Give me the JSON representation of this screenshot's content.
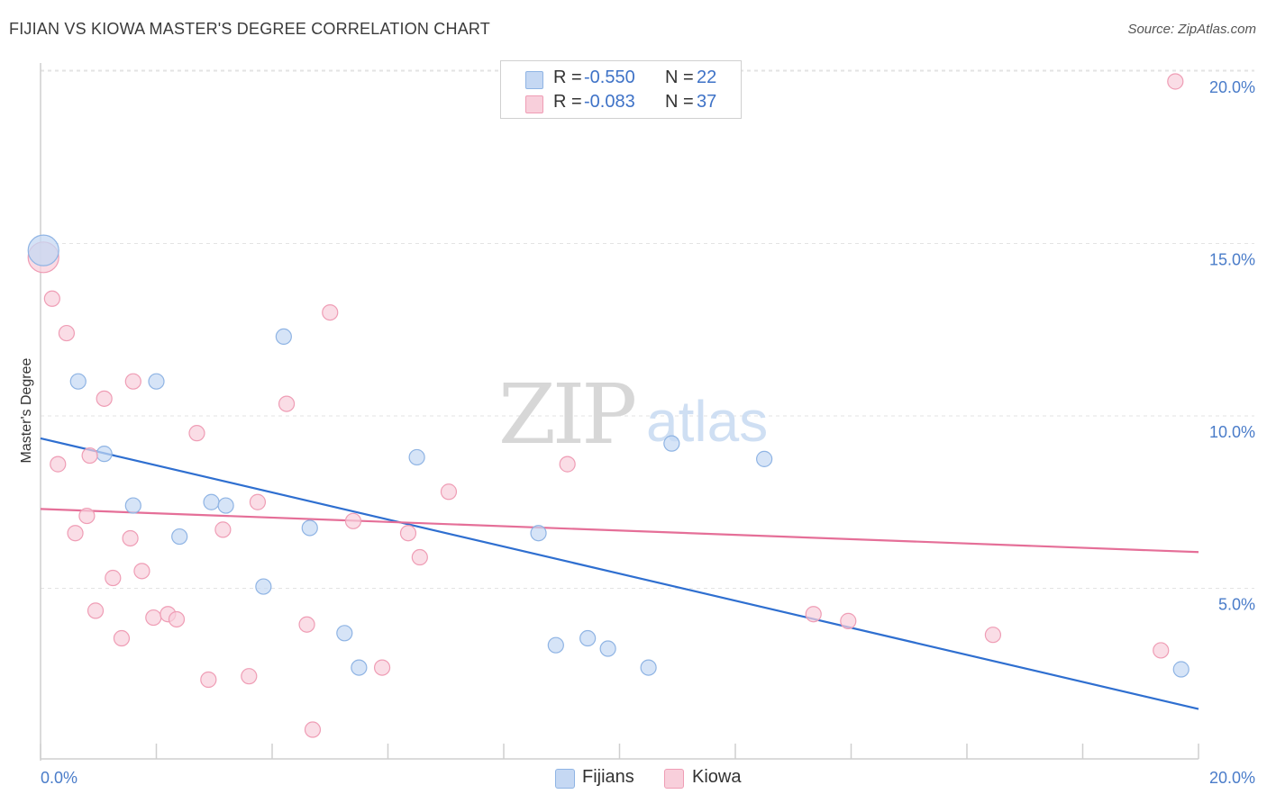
{
  "header": {
    "title": "FIJIAN VS KIOWA MASTER'S DEGREE CORRELATION CHART",
    "source": "Source: ZipAtlas.com"
  },
  "watermark": {
    "zip": "ZIP",
    "atlas": "atlas"
  },
  "legend": {
    "rows": [
      {
        "r_label": "R =",
        "r_value": "-0.550",
        "n_label": "N =",
        "n_value": "22"
      },
      {
        "r_label": "R =",
        "r_value": "-0.083",
        "n_label": "N =",
        "n_value": "37"
      }
    ]
  },
  "bottom_legend": {
    "fijians": "Fijians",
    "kiowa": "Kiowa"
  },
  "colors": {
    "fijians_fill": "#c5d8f3",
    "fijians_stroke": "#8fb4e4",
    "fijians_line": "#2f6fd0",
    "kiowa_fill": "#f8cfdb",
    "kiowa_stroke": "#ef9db5",
    "kiowa_line": "#e56f98",
    "grid": "#e3e3e3",
    "tick_text": "#4a7cc9"
  },
  "chart_data": {
    "type": "scatter",
    "title": "FIJIAN VS KIOWA MASTER'S DEGREE CORRELATION CHART",
    "xlabel": "",
    "ylabel": "Master's Degree",
    "xlim": [
      0,
      20
    ],
    "ylim": [
      0,
      20
    ],
    "x_tick_labels": [
      "0.0%",
      "20.0%"
    ],
    "y_ticks": [
      5,
      10,
      15,
      20
    ],
    "y_tick_labels": [
      "5.0%",
      "10.0%",
      "15.0%",
      "20.0%"
    ],
    "grid": true,
    "legend_position": "top-center",
    "series": [
      {
        "name": "Fijians",
        "r": -0.55,
        "n": 22,
        "points": [
          {
            "x": 0.05,
            "y": 14.8,
            "big": true
          },
          {
            "x": 0.65,
            "y": 11.0
          },
          {
            "x": 2.0,
            "y": 11.0
          },
          {
            "x": 4.2,
            "y": 12.3
          },
          {
            "x": 1.1,
            "y": 8.9
          },
          {
            "x": 1.6,
            "y": 7.4
          },
          {
            "x": 2.95,
            "y": 7.5
          },
          {
            "x": 3.2,
            "y": 7.4
          },
          {
            "x": 2.4,
            "y": 6.5
          },
          {
            "x": 4.65,
            "y": 6.75
          },
          {
            "x": 3.85,
            "y": 5.05
          },
          {
            "x": 5.25,
            "y": 3.7
          },
          {
            "x": 5.5,
            "y": 2.7
          },
          {
            "x": 6.5,
            "y": 8.8
          },
          {
            "x": 8.6,
            "y": 6.6
          },
          {
            "x": 8.9,
            "y": 3.35
          },
          {
            "x": 9.45,
            "y": 3.55
          },
          {
            "x": 9.8,
            "y": 3.25
          },
          {
            "x": 10.5,
            "y": 2.7
          },
          {
            "x": 10.9,
            "y": 9.2
          },
          {
            "x": 12.5,
            "y": 8.75
          },
          {
            "x": 19.7,
            "y": 2.65
          }
        ],
        "trend": {
          "x1": 0,
          "y1": 9.35,
          "x2": 20,
          "y2": 1.5
        }
      },
      {
        "name": "Kiowa",
        "r": -0.083,
        "n": 37,
        "points": [
          {
            "x": 0.05,
            "y": 14.6,
            "big": true
          },
          {
            "x": 19.6,
            "y": 19.7
          },
          {
            "x": 0.2,
            "y": 13.4
          },
          {
            "x": 0.45,
            "y": 12.4
          },
          {
            "x": 5.0,
            "y": 13.0
          },
          {
            "x": 1.1,
            "y": 10.5
          },
          {
            "x": 1.6,
            "y": 11.0
          },
          {
            "x": 4.25,
            "y": 10.35
          },
          {
            "x": 2.7,
            "y": 9.5
          },
          {
            "x": 0.3,
            "y": 8.6
          },
          {
            "x": 0.85,
            "y": 8.85
          },
          {
            "x": 0.8,
            "y": 7.1
          },
          {
            "x": 0.6,
            "y": 6.6
          },
          {
            "x": 1.55,
            "y": 6.45
          },
          {
            "x": 3.75,
            "y": 7.5
          },
          {
            "x": 3.15,
            "y": 6.7
          },
          {
            "x": 5.4,
            "y": 6.95
          },
          {
            "x": 6.35,
            "y": 6.6
          },
          {
            "x": 7.05,
            "y": 7.8
          },
          {
            "x": 6.55,
            "y": 5.9
          },
          {
            "x": 9.1,
            "y": 8.6
          },
          {
            "x": 1.25,
            "y": 5.3
          },
          {
            "x": 1.75,
            "y": 5.5
          },
          {
            "x": 0.95,
            "y": 4.35
          },
          {
            "x": 1.95,
            "y": 4.15
          },
          {
            "x": 2.2,
            "y": 4.25
          },
          {
            "x": 2.35,
            "y": 4.1
          },
          {
            "x": 1.4,
            "y": 3.55
          },
          {
            "x": 4.6,
            "y": 3.95
          },
          {
            "x": 2.9,
            "y": 2.35
          },
          {
            "x": 3.6,
            "y": 2.45
          },
          {
            "x": 5.9,
            "y": 2.7
          },
          {
            "x": 4.7,
            "y": 0.9
          },
          {
            "x": 13.35,
            "y": 4.25
          },
          {
            "x": 13.95,
            "y": 4.05
          },
          {
            "x": 16.45,
            "y": 3.65
          },
          {
            "x": 19.35,
            "y": 3.2
          }
        ],
        "trend": {
          "x1": 0,
          "y1": 7.3,
          "x2": 20,
          "y2": 6.05
        }
      }
    ]
  }
}
